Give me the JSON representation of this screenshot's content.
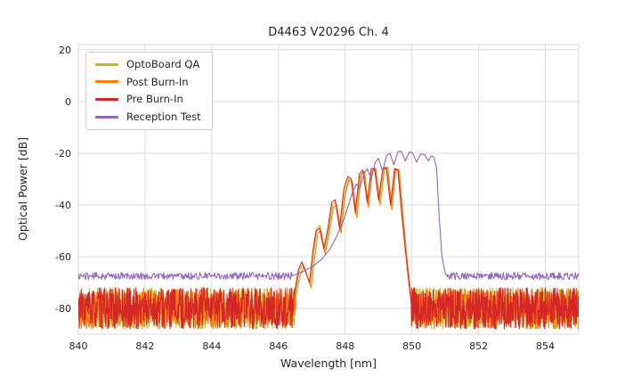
{
  "chart_data": {
    "type": "line",
    "title": "D4463 V20296 Ch. 4",
    "xlabel": "Wavelength [nm]",
    "ylabel": "Optical Power [dB]",
    "xlim": [
      840,
      855
    ],
    "ylim": [
      -90,
      22
    ],
    "xticks": [
      840,
      842,
      844,
      846,
      848,
      850,
      852,
      854
    ],
    "yticks": [
      20,
      0,
      -20,
      -40,
      -60,
      -80
    ],
    "grid": true,
    "legend_position": "upper left",
    "series": [
      {
        "name": "OptoBoard QA",
        "color": "#bcbd22",
        "seed": 11,
        "segments": [
          {
            "kind": "noise",
            "x0": 840,
            "x1": 846.5,
            "base": -80,
            "amp": 8,
            "step": 0.01
          },
          {
            "kind": "points",
            "points": [
              [
                846.5,
                -74
              ],
              [
                846.62,
                -66
              ],
              [
                846.72,
                -63
              ],
              [
                846.82,
                -66
              ],
              [
                846.95,
                -71
              ],
              [
                847.05,
                -60
              ],
              [
                847.15,
                -49
              ],
              [
                847.25,
                -48
              ],
              [
                847.38,
                -58
              ],
              [
                847.5,
                -50
              ],
              [
                847.62,
                -40
              ],
              [
                847.72,
                -39
              ],
              [
                847.85,
                -50
              ],
              [
                847.98,
                -36
              ],
              [
                848.1,
                -30
              ],
              [
                848.2,
                -31
              ],
              [
                848.32,
                -44
              ],
              [
                848.45,
                -29
              ],
              [
                848.55,
                -27
              ],
              [
                848.68,
                -40
              ],
              [
                848.8,
                -27
              ],
              [
                848.9,
                -26.5
              ],
              [
                849.02,
                -39
              ],
              [
                849.15,
                -26.5
              ],
              [
                849.25,
                -26
              ],
              [
                849.38,
                -41
              ],
              [
                849.5,
                -26.5
              ],
              [
                849.6,
                -27
              ],
              [
                849.72,
                -45
              ],
              [
                849.82,
                -58
              ],
              [
                849.92,
                -70
              ],
              [
                850.0,
                -78
              ]
            ]
          },
          {
            "kind": "noise",
            "x0": 850.0,
            "x1": 855,
            "base": -80,
            "amp": 8,
            "step": 0.01
          }
        ]
      },
      {
        "name": "Post Burn-In",
        "color": "#ff7f0e",
        "seed": 22,
        "segments": [
          {
            "kind": "noise",
            "x0": 840,
            "x1": 846.52,
            "base": -80,
            "amp": 8,
            "step": 0.01
          },
          {
            "kind": "points",
            "points": [
              [
                846.52,
                -75
              ],
              [
                846.65,
                -67
              ],
              [
                846.75,
                -64
              ],
              [
                846.85,
                -67
              ],
              [
                846.98,
                -72
              ],
              [
                847.08,
                -61
              ],
              [
                847.18,
                -51
              ],
              [
                847.28,
                -50
              ],
              [
                847.4,
                -59
              ],
              [
                847.52,
                -51
              ],
              [
                847.65,
                -41
              ],
              [
                847.75,
                -40
              ],
              [
                847.88,
                -51
              ],
              [
                848.0,
                -36
              ],
              [
                848.12,
                -30.5
              ],
              [
                848.22,
                -31
              ],
              [
                848.35,
                -45
              ],
              [
                848.48,
                -28.5
              ],
              [
                848.58,
                -27
              ],
              [
                848.7,
                -41
              ],
              [
                848.82,
                -26.5
              ],
              [
                848.92,
                -26
              ],
              [
                849.05,
                -40
              ],
              [
                849.18,
                -26
              ],
              [
                849.28,
                -25.5
              ],
              [
                849.4,
                -42
              ],
              [
                849.52,
                -26
              ],
              [
                849.62,
                -26.5
              ],
              [
                849.75,
                -46
              ],
              [
                849.85,
                -60
              ],
              [
                849.95,
                -72
              ],
              [
                850.02,
                -80
              ]
            ]
          },
          {
            "kind": "noise",
            "x0": 850.02,
            "x1": 855,
            "base": -80,
            "amp": 8,
            "step": 0.01
          }
        ]
      },
      {
        "name": "Pre Burn-In",
        "color": "#d62728",
        "seed": 33,
        "segments": [
          {
            "kind": "noise",
            "x0": 840,
            "x1": 846.48,
            "base": -80,
            "amp": 8,
            "step": 0.01
          },
          {
            "kind": "points",
            "points": [
              [
                846.48,
                -74
              ],
              [
                846.6,
                -65
              ],
              [
                846.7,
                -62
              ],
              [
                846.8,
                -65
              ],
              [
                846.93,
                -70
              ],
              [
                847.03,
                -58
              ],
              [
                847.13,
                -50
              ],
              [
                847.23,
                -49
              ],
              [
                847.36,
                -57
              ],
              [
                847.48,
                -49
              ],
              [
                847.6,
                -39
              ],
              [
                847.7,
                -38
              ],
              [
                847.83,
                -49
              ],
              [
                847.96,
                -34
              ],
              [
                848.08,
                -29
              ],
              [
                848.18,
                -30
              ],
              [
                848.3,
                -43
              ],
              [
                848.43,
                -28
              ],
              [
                848.53,
                -26.5
              ],
              [
                848.66,
                -39
              ],
              [
                848.78,
                -26
              ],
              [
                848.88,
                -25.8
              ],
              [
                849.0,
                -38
              ],
              [
                849.13,
                -25.8
              ],
              [
                849.23,
                -25.5
              ],
              [
                849.36,
                -40
              ],
              [
                849.48,
                -26
              ],
              [
                849.58,
                -26.5
              ],
              [
                849.7,
                -44
              ],
              [
                849.8,
                -57
              ],
              [
                849.9,
                -69
              ],
              [
                849.98,
                -78
              ]
            ]
          },
          {
            "kind": "noise",
            "x0": 849.98,
            "x1": 855,
            "base": -80,
            "amp": 8,
            "step": 0.01
          }
        ]
      },
      {
        "name": "Reception Test",
        "color": "#9467bd",
        "seed": 44,
        "segments": [
          {
            "kind": "noise",
            "x0": 840,
            "x1": 846.4,
            "base": -67.5,
            "amp": 1.4,
            "step": 0.02
          },
          {
            "kind": "points",
            "points": [
              [
                846.4,
                -67.5
              ],
              [
                846.7,
                -66
              ],
              [
                847.0,
                -64
              ],
              [
                847.3,
                -61
              ],
              [
                847.55,
                -57
              ],
              [
                847.75,
                -52
              ],
              [
                847.95,
                -46
              ],
              [
                848.1,
                -40
              ],
              [
                848.22,
                -35
              ],
              [
                848.34,
                -32
              ],
              [
                848.44,
                -33.5
              ],
              [
                848.56,
                -28
              ],
              [
                848.66,
                -26
              ],
              [
                848.78,
                -30
              ],
              [
                848.9,
                -23.5
              ],
              [
                849.0,
                -22
              ],
              [
                849.12,
                -27
              ],
              [
                849.24,
                -21
              ],
              [
                849.34,
                -20
              ],
              [
                849.46,
                -24.5
              ],
              [
                849.58,
                -19.5
              ],
              [
                849.68,
                -19.2
              ],
              [
                849.8,
                -23
              ],
              [
                849.92,
                -19.6
              ],
              [
                850.02,
                -19.8
              ],
              [
                850.14,
                -23.5
              ],
              [
                850.26,
                -20.3
              ],
              [
                850.38,
                -20.6
              ],
              [
                850.5,
                -23
              ],
              [
                850.58,
                -21
              ],
              [
                850.66,
                -21.5
              ],
              [
                850.74,
                -26
              ],
              [
                850.82,
                -45
              ],
              [
                850.9,
                -60
              ],
              [
                851.0,
                -66.5
              ]
            ]
          },
          {
            "kind": "noise",
            "x0": 851.0,
            "x1": 855,
            "base": -67.5,
            "amp": 1.4,
            "step": 0.02
          }
        ]
      }
    ]
  }
}
